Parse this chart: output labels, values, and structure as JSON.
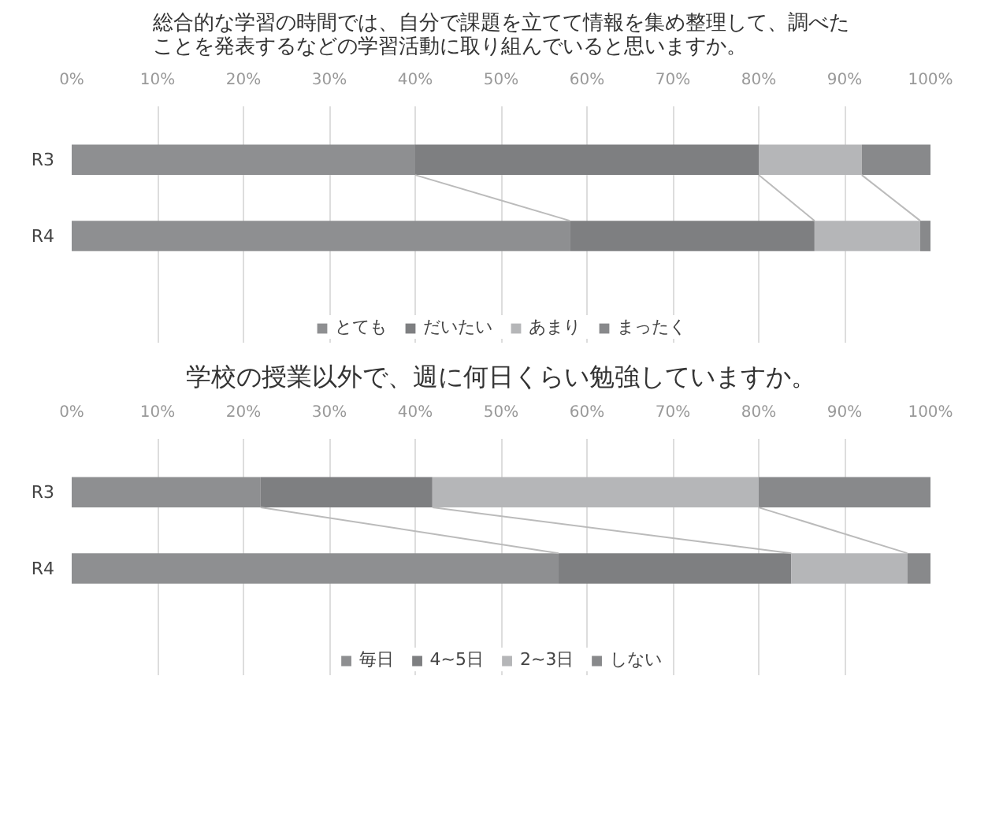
{
  "chart_data": [
    {
      "type": "bar",
      "orientation": "horizontal",
      "stacked": true,
      "title": "総合的な学習の時間では、自分で課題を立てて情報を集め整理して、調べたことを発表するなどの学習活動に取り組んでいると思いますか。",
      "categories": [
        "R3",
        "R4"
      ],
      "series": [
        {
          "name": "とても",
          "color": "#8e8f91",
          "values": [
            40,
            58
          ]
        },
        {
          "name": "だいたい",
          "color": "#7e7f81",
          "values": [
            40,
            28.5
          ]
        },
        {
          "name": "あまり",
          "color": "#b5b6b8",
          "values": [
            12,
            12.3
          ]
        },
        {
          "name": "まったく",
          "color": "#88898b",
          "values": [
            8,
            1.2
          ]
        }
      ],
      "xlim": [
        0,
        100
      ],
      "xticks": [
        {
          "value": 0,
          "label": "0%"
        },
        {
          "value": 10,
          "label": "10%"
        },
        {
          "value": 20,
          "label": "20%"
        },
        {
          "value": 30,
          "label": "30%"
        },
        {
          "value": 40,
          "label": "40%"
        },
        {
          "value": 50,
          "label": "50%"
        },
        {
          "value": 60,
          "label": "60%"
        },
        {
          "value": 70,
          "label": "70%"
        },
        {
          "value": 80,
          "label": "80%"
        },
        {
          "value": 90,
          "label": "90%"
        },
        {
          "value": 100,
          "label": "100%"
        }
      ],
      "grid": "x",
      "legend": "bottom"
    },
    {
      "type": "bar",
      "orientation": "horizontal",
      "stacked": true,
      "title": "学校の授業以外で、週に何日くらい勉強していますか。",
      "categories": [
        "R3",
        "R4"
      ],
      "series": [
        {
          "name": "毎日",
          "color": "#8e8f91",
          "values": [
            22,
            56.7
          ]
        },
        {
          "name": "4~5日",
          "color": "#7e7f81",
          "values": [
            20,
            27.1
          ]
        },
        {
          "name": "2~3日",
          "color": "#b5b6b8",
          "values": [
            38,
            13.5
          ]
        },
        {
          "name": "しない",
          "color": "#88898b",
          "values": [
            20,
            2.7
          ]
        }
      ],
      "xlim": [
        0,
        100
      ],
      "xticks": [
        {
          "value": 0,
          "label": "0%"
        },
        {
          "value": 10,
          "label": "10%"
        },
        {
          "value": 20,
          "label": "20%"
        },
        {
          "value": 30,
          "label": "30%"
        },
        {
          "value": 40,
          "label": "40%"
        },
        {
          "value": 50,
          "label": "50%"
        },
        {
          "value": 60,
          "label": "60%"
        },
        {
          "value": 70,
          "label": "70%"
        },
        {
          "value": 80,
          "label": "80%"
        },
        {
          "value": 90,
          "label": "90%"
        },
        {
          "value": 100,
          "label": "100%"
        }
      ],
      "grid": "x",
      "legend": "bottom"
    }
  ]
}
